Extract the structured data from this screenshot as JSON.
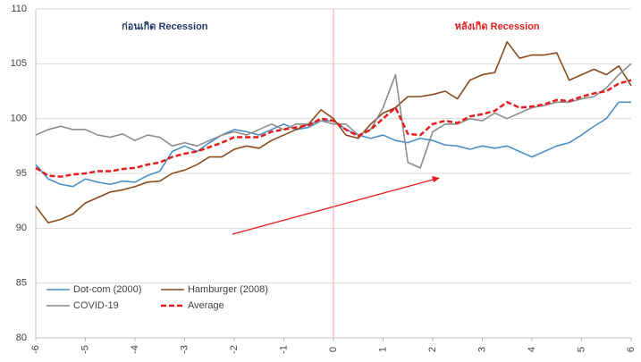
{
  "chart_data": {
    "type": "line",
    "annotations": [
      {
        "text": "ก่อนเกิด Recession",
        "color": "#1f3864"
      },
      {
        "text": "หลังเกิด Recession",
        "color": "#e02020"
      }
    ],
    "x": [
      -6,
      -5.75,
      -5.5,
      -5.25,
      -5,
      -4.75,
      -4.5,
      -4.25,
      -4,
      -3.75,
      -3.5,
      -3.25,
      -3,
      -2.75,
      -2.5,
      -2.25,
      -2,
      -1.75,
      -1.5,
      -1.25,
      -1,
      -0.75,
      -0.5,
      -0.25,
      0,
      0.25,
      0.5,
      0.75,
      1,
      1.25,
      1.5,
      1.75,
      2,
      2.25,
      2.5,
      2.75,
      3,
      3.25,
      3.5,
      3.75,
      4,
      4.25,
      4.5,
      4.75,
      5,
      5.25,
      5.5,
      5.75,
      6
    ],
    "series": [
      {
        "name": "Dot-com (2000)",
        "color": "#4a90c8",
        "style": "solid",
        "values": [
          95.8,
          94.5,
          94,
          93.8,
          94.5,
          94.2,
          94,
          94.3,
          94.2,
          94.8,
          95.2,
          97,
          97.5,
          97,
          97.8,
          98.5,
          99,
          98.8,
          98.5,
          99,
          99.5,
          99,
          99.2,
          99.8,
          99.8,
          99,
          98.5,
          98.2,
          98.5,
          98,
          97.8,
          98.2,
          98,
          97.6,
          97.5,
          97.2,
          97.5,
          97.3,
          97.5,
          97,
          96.5,
          97,
          97.5,
          97.8,
          98.5,
          99.3,
          100,
          101.5,
          101.5
        ]
      },
      {
        "name": "Hamburger (2008)",
        "color": "#8b4a1a",
        "style": "solid",
        "values": [
          92,
          90.5,
          90.8,
          91.3,
          92.3,
          92.8,
          93.3,
          93.5,
          93.8,
          94.2,
          94.3,
          95,
          95.3,
          95.8,
          96.5,
          96.5,
          97.2,
          97.5,
          97.3,
          98,
          98.5,
          99,
          99.5,
          100.8,
          100,
          98.5,
          98.2,
          99.5,
          100.5,
          101,
          102,
          102,
          102.2,
          102.5,
          101.8,
          103.5,
          104,
          104.2,
          107,
          105.5,
          105.8,
          105.8,
          106,
          103.5,
          104,
          104.5,
          104,
          104.8,
          103
        ]
      },
      {
        "name": "COVID-19",
        "color": "#8c8c8c",
        "style": "solid",
        "values": [
          98.5,
          99,
          99.3,
          99,
          99,
          98.5,
          98.3,
          98.6,
          98,
          98.5,
          98.3,
          97.5,
          97.8,
          97.5,
          98,
          98.5,
          98.8,
          98.5,
          99,
          99.5,
          99,
          99.5,
          99.5,
          99.8,
          99.5,
          99.5,
          98.5,
          99,
          101,
          104,
          96,
          95.5,
          98.8,
          99.5,
          99.5,
          100,
          99.8,
          100.5,
          100,
          100.5,
          101,
          101.2,
          101.5,
          101.5,
          101.8,
          102,
          102.8,
          104,
          105
        ]
      },
      {
        "name": "Average",
        "color": "#e81c1c",
        "style": "dashed",
        "values": [
          95.5,
          94.8,
          94.7,
          94.9,
          95,
          95.2,
          95.2,
          95.4,
          95.5,
          95.8,
          96,
          96.5,
          96.8,
          97,
          97.4,
          97.8,
          98.3,
          98.3,
          98.3,
          98.8,
          99,
          99.2,
          99.4,
          100,
          99.8,
          99,
          98.4,
          99,
          100,
          101,
          98.6,
          98.5,
          99.5,
          99.8,
          99.6,
          100.2,
          100.4,
          100.7,
          101.5,
          101,
          101.1,
          101.3,
          101.7,
          101.6,
          102,
          102.3,
          102.5,
          103.2,
          103.5
        ]
      }
    ],
    "xlim": [
      -6,
      6
    ],
    "xticks": [
      -6,
      -5,
      -4,
      -3,
      -2,
      -1,
      0,
      1,
      2,
      3,
      4,
      5,
      6
    ],
    "ylim": [
      80,
      110
    ],
    "yticks": [
      80,
      85,
      90,
      95,
      100,
      105,
      110
    ],
    "grid": true,
    "legend": "lower left"
  }
}
